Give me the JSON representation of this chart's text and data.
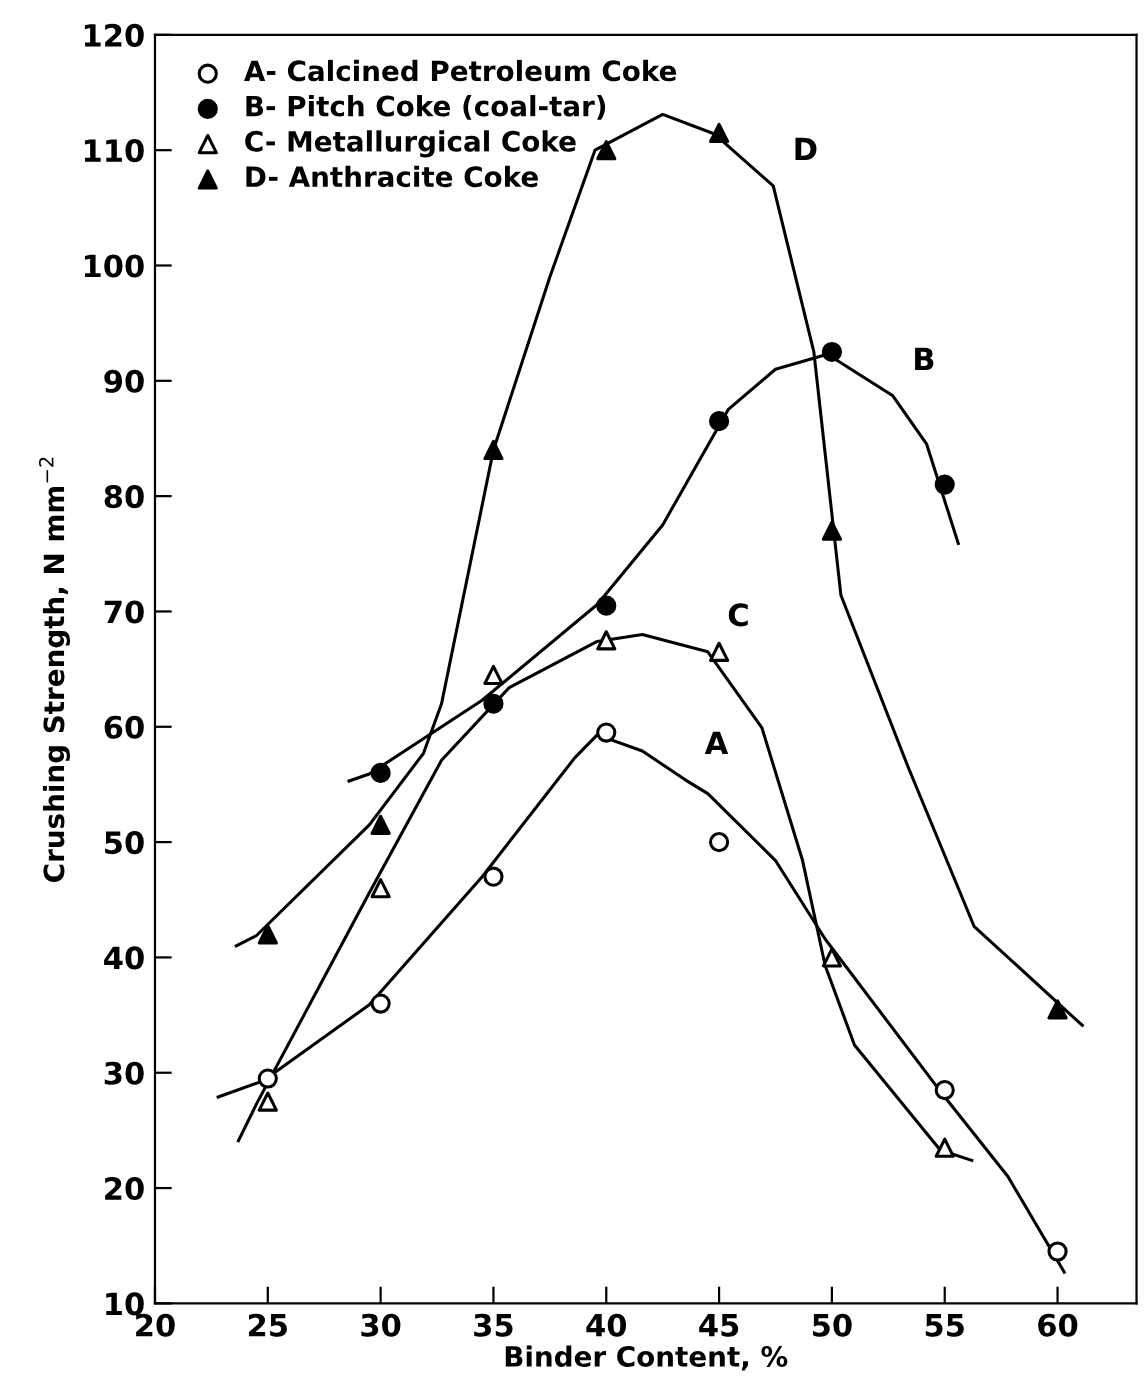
{
  "chart_data": {
    "type": "scatter",
    "xlabel": "Binder Content, %",
    "ylabel": "Crushing Strength, N mm$^{−2}$",
    "x": [
      25,
      30,
      35,
      40,
      45,
      50,
      55,
      60
    ],
    "series": [
      {
        "name": "A- Calcined Petroleum Coke",
        "color": "#000000",
        "marker": "circle",
        "values": [
          29.5,
          36,
          47,
          59.5,
          50,
          null,
          28.5,
          14.5
        ]
      },
      {
        "name": "B- Pitch Coke (coal-tar)",
        "color": "#000000",
        "marker": "circle",
        "values": [
          null,
          56,
          62,
          70.5,
          86.5,
          92.5,
          81,
          null
        ]
      },
      {
        "name": "C- Metallurgical Coke",
        "color": "#000000",
        "marker": "triangle",
        "values": [
          27.5,
          46,
          64.5,
          67.5,
          66.5,
          40,
          23.5,
          null
        ]
      },
      {
        "name": "D- Anthracite Coke",
        "color": "#000000",
        "marker": "triangle",
        "values": [
          42,
          51.5,
          84,
          110,
          111.5,
          77,
          null,
          35.5
        ]
      },
      {
        "type": "line",
        "color": "#000000",
        "x": [
          22.8,
          24.8,
          29.5,
          34.5,
          38.6,
          39.6,
          41.6,
          43.5,
          44.5,
          47.5,
          49.7,
          54.8,
          57.8,
          60.3
        ],
        "values": [
          27.9,
          29.3,
          35.9,
          47.0,
          57.3,
          59.3,
          57.9,
          55.4,
          54.2,
          48.4,
          41.6,
          28.4,
          21.0,
          12.7
        ]
      },
      {
        "type": "line",
        "color": "#000000",
        "x": [
          28.6,
          29.5,
          34.5,
          39.6,
          42.5,
          45.4,
          47.5,
          49.8,
          52.7,
          54.2,
          55.6
        ],
        "values": [
          55.3,
          55.9,
          62.3,
          70.6,
          77.5,
          87.5,
          91.0,
          92.3,
          88.7,
          84.5,
          75.9
        ]
      },
      {
        "type": "line",
        "color": "#000000",
        "x": [
          23.7,
          24.5,
          29.5,
          32.7,
          35.7,
          39.6,
          41.6,
          44.5,
          46.9,
          48.7,
          49.7,
          51.0,
          54.8,
          56.2
        ],
        "values": [
          24.1,
          27.3,
          45.6,
          57.1,
          63.4,
          67.4,
          68.0,
          66.5,
          59.9,
          48.4,
          39.3,
          32.4,
          23.3,
          22.4
        ]
      },
      {
        "type": "line",
        "color": "#000000",
        "x": [
          23.6,
          24.5,
          29.5,
          31.9,
          32.7,
          35.0,
          37.5,
          39.5,
          42.5,
          44.8,
          47.4,
          49.2,
          50.4,
          53.4,
          56.3,
          61.1
        ],
        "values": [
          41.0,
          41.9,
          51.5,
          57.7,
          62.0,
          84.0,
          99.0,
          110.0,
          113.1,
          111.4,
          106.9,
          92.5,
          71.4,
          56.4,
          42.7,
          34.1
        ]
      }
    ],
    "annotations": [
      {
        "text": "A",
        "x": 43.5,
        "y": 55.4
      },
      {
        "text": "B",
        "x": 52.7,
        "y": 88.7
      },
      {
        "text": "C",
        "x": 44.5,
        "y": 66.5
      },
      {
        "text": "D",
        "x": 47.4,
        "y": 106.9
      }
    ],
    "xlim": [
      20,
      63.5
    ],
    "xticks": [
      20,
      25,
      30,
      35,
      40,
      45,
      50,
      55,
      60
    ],
    "ylim": [
      10,
      120
    ],
    "yticks": [
      10,
      20,
      30,
      40,
      50,
      60,
      70,
      80,
      90,
      100,
      110,
      120
    ],
    "legend": "top left",
    "grid": false,
    "line_style": "solid"
  }
}
